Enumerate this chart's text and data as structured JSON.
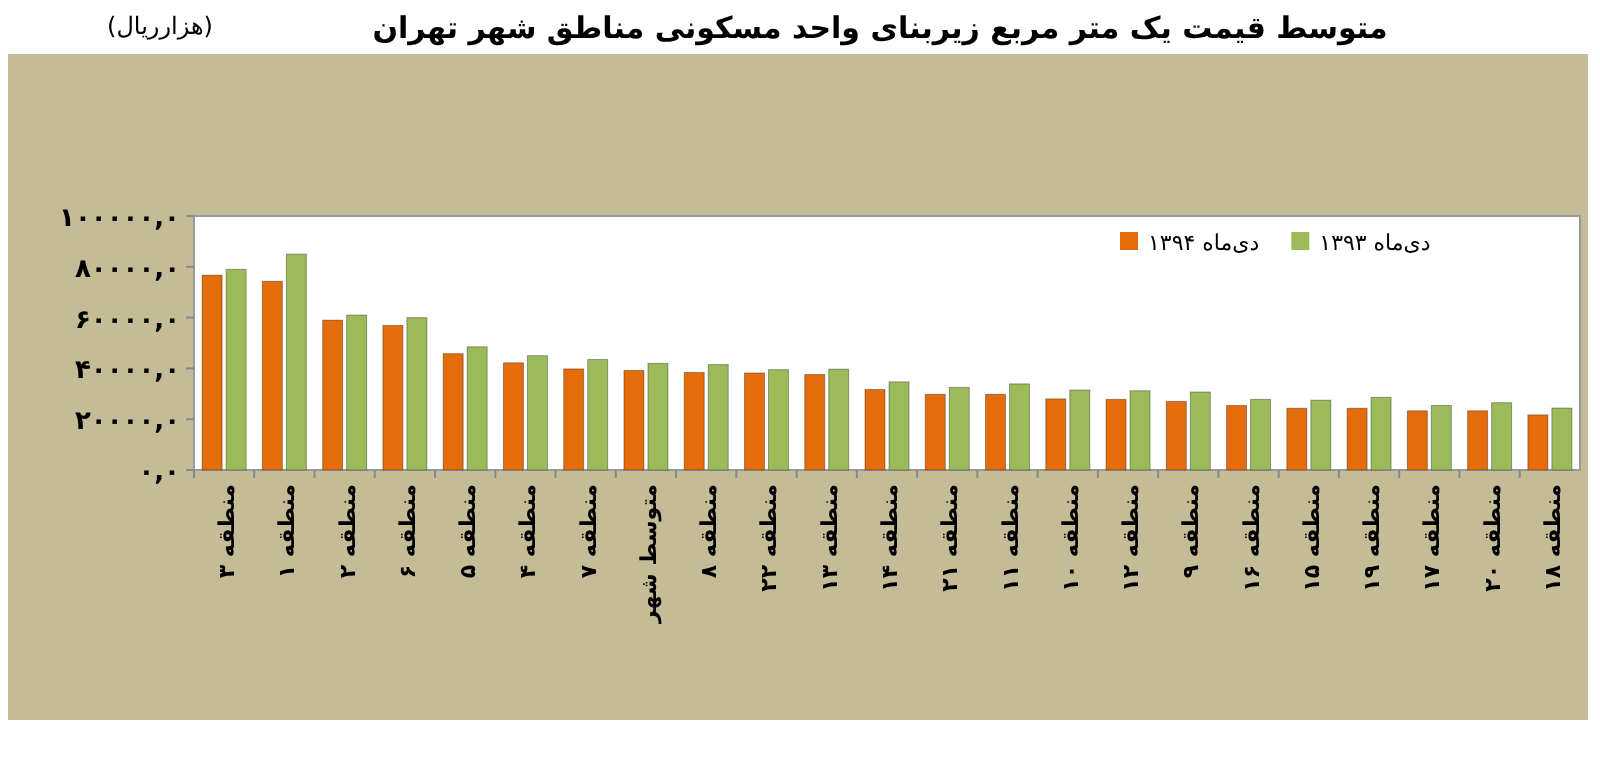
{
  "chart_data": {
    "type": "bar",
    "title": "متوسط قیمت یک متر مربع زیربنای واحد مسکونی مناطق شهر تهران",
    "annotations": [
      "(هزارریال)"
    ],
    "categories": [
      "منطقه ۳",
      "منطقه ۱",
      "منطقه ۲",
      "منطقه ۶",
      "منطقه ۵",
      "منطقه ۴",
      "منطقه ۷",
      "متوسط شهر",
      "منطقه ۸",
      "منطقه ۲۲",
      "منطقه ۱۳",
      "منطقه ۱۴",
      "منطقه ۲۱",
      "منطقه ۱۱",
      "منطقه ۱۰",
      "منطقه ۱۲",
      "منطقه ۹",
      "منطقه ۱۶",
      "منطقه ۱۵",
      "منطقه ۱۹",
      "منطقه ۱۷",
      "منطقه ۲۰",
      "منطقه ۱۸"
    ],
    "series": [
      {
        "name": "دی‌ماه ۱۳۹۴",
        "color": "#e46c0a",
        "values": [
          76700,
          74300,
          59000,
          56900,
          45800,
          42200,
          39800,
          39200,
          38400,
          38200,
          37600,
          31700,
          29800,
          29800,
          28000,
          27800,
          27000,
          25400,
          24300,
          24300,
          23300,
          23300,
          21700
        ]
      },
      {
        "name": "دی‌ماه ۱۳۹۳",
        "color": "#9bbb59",
        "values": [
          79000,
          85000,
          61000,
          60000,
          48500,
          45000,
          43500,
          42000,
          41500,
          39500,
          39700,
          34700,
          32500,
          33900,
          31500,
          31200,
          30700,
          27800,
          27500,
          28600,
          25400,
          26500,
          24400
        ]
      }
    ],
    "ylim": [
      0,
      100000
    ],
    "yticks": [
      {
        "value": 0,
        "label": "۰,۰"
      },
      {
        "value": 20000,
        "label": "۲۰۰۰۰,۰"
      },
      {
        "value": 40000,
        "label": "۴۰۰۰۰,۰"
      },
      {
        "value": 60000,
        "label": "۶۰۰۰۰,۰"
      },
      {
        "value": 80000,
        "label": "۸۰۰۰۰,۰"
      },
      {
        "value": 100000,
        "label": "۱۰۰۰۰۰,۰"
      }
    ],
    "legend": "top"
  }
}
